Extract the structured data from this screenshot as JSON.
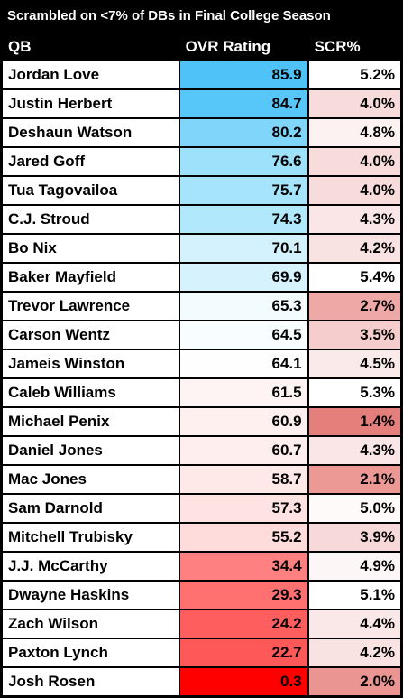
{
  "title": "Scrambled on <7% of DBs in Final College Season",
  "columns": [
    "QB",
    "OVR Rating",
    "SCR%"
  ],
  "rows": [
    {
      "qb": "Jordan Love",
      "ovr": "85.9",
      "scr": "5.2%",
      "ovr_color": "#4fc3f7",
      "scr_color": "#ffffff"
    },
    {
      "qb": "Justin Herbert",
      "ovr": "84.7",
      "scr": "4.0%",
      "ovr_color": "#56c7f8",
      "scr_color": "#f8dcdc"
    },
    {
      "qb": "Deshaun Watson",
      "ovr": "80.2",
      "scr": "4.8%",
      "ovr_color": "#7fd6fa",
      "scr_color": "#fdf2f2"
    },
    {
      "qb": "Jared Goff",
      "ovr": "76.6",
      "scr": "4.0%",
      "ovr_color": "#9de1fb",
      "scr_color": "#f8dcdc"
    },
    {
      "qb": "Tua Tagovailoa",
      "ovr": "75.7",
      "scr": "4.0%",
      "ovr_color": "#a5e4fb",
      "scr_color": "#f8dcdc"
    },
    {
      "qb": "C.J. Stroud",
      "ovr": "74.3",
      "scr": "4.3%",
      "ovr_color": "#b1e8fc",
      "scr_color": "#fae6e6"
    },
    {
      "qb": "Bo Nix",
      "ovr": "70.1",
      "scr": "4.2%",
      "ovr_color": "#d3f2fd",
      "scr_color": "#f9e2e2"
    },
    {
      "qb": "Baker Mayfield",
      "ovr": "69.9",
      "scr": "5.4%",
      "ovr_color": "#d5f2fd",
      "scr_color": "#ffffff"
    },
    {
      "qb": "Trevor Lawrence",
      "ovr": "65.3",
      "scr": "2.7%",
      "ovr_color": "#f2fbfe",
      "scr_color": "#eea8a6"
    },
    {
      "qb": "Carson Wentz",
      "ovr": "64.5",
      "scr": "3.5%",
      "ovr_color": "#f8fdff",
      "scr_color": "#f5cdcc"
    },
    {
      "qb": "Jameis Winston",
      "ovr": "64.1",
      "scr": "4.5%",
      "ovr_color": "#fefeff",
      "scr_color": "#fbeaea"
    },
    {
      "qb": "Caleb Williams",
      "ovr": "61.5",
      "scr": "5.3%",
      "ovr_color": "#fff4f4",
      "scr_color": "#ffffff"
    },
    {
      "qb": "Michael Penix",
      "ovr": "60.9",
      "scr": "1.4%",
      "ovr_color": "#fff0f0",
      "scr_color": "#e57f7c"
    },
    {
      "qb": "Daniel Jones",
      "ovr": "60.7",
      "scr": "4.3%",
      "ovr_color": "#ffeeee",
      "scr_color": "#fae6e6"
    },
    {
      "qb": "Mac Jones",
      "ovr": "58.7",
      "scr": "2.1%",
      "ovr_color": "#ffe8e8",
      "scr_color": "#ec9895"
    },
    {
      "qb": "Sam Darnold",
      "ovr": "57.3",
      "scr": "5.0%",
      "ovr_color": "#ffe3e3",
      "scr_color": "#fefafa"
    },
    {
      "qb": "Mitchell Trubisky",
      "ovr": "55.2",
      "scr": "3.9%",
      "ovr_color": "#ffdcdc",
      "scr_color": "#f8d9d9"
    },
    {
      "qb": "J.J. McCarthy",
      "ovr": "34.4",
      "scr": "4.9%",
      "ovr_color": "#ff8080",
      "scr_color": "#fdf6f6"
    },
    {
      "qb": "Dwayne Haskins",
      "ovr": "29.3",
      "scr": "5.1%",
      "ovr_color": "#ff7070",
      "scr_color": "#ffffff"
    },
    {
      "qb": "Zach Wilson",
      "ovr": "24.2",
      "scr": "4.4%",
      "ovr_color": "#ff5e5e",
      "scr_color": "#fae8e8"
    },
    {
      "qb": "Paxton Lynch",
      "ovr": "22.7",
      "scr": "4.2%",
      "ovr_color": "#ff5858",
      "scr_color": "#f9e2e2"
    },
    {
      "qb": "Josh Rosen",
      "ovr": "0.3",
      "scr": "2.0%",
      "ovr_color": "#ff0000",
      "scr_color": "#eb9592"
    }
  ]
}
